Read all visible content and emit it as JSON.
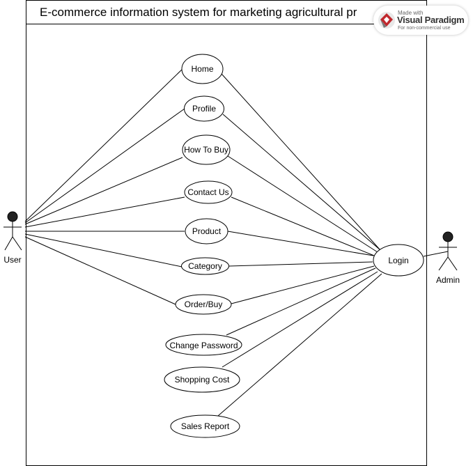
{
  "title": "E-commerce information system for marketing agricultural pr",
  "actors": {
    "user": "User",
    "admin": "Admin"
  },
  "use_cases": {
    "home": "Home",
    "profile": "Profile",
    "how_to_buy": "How To Buy",
    "contact_us": "Contact Us",
    "product": "Product",
    "category": "Category",
    "order_buy": "Order/Buy",
    "change_password": "Change Password",
    "shopping_cost": "Shopping Cost",
    "sales_report": "Sales Report",
    "login": "Login"
  },
  "watermark": {
    "made_with": "Made with",
    "brand": "Visual Paradigm",
    "note": "For non-commercial use"
  }
}
